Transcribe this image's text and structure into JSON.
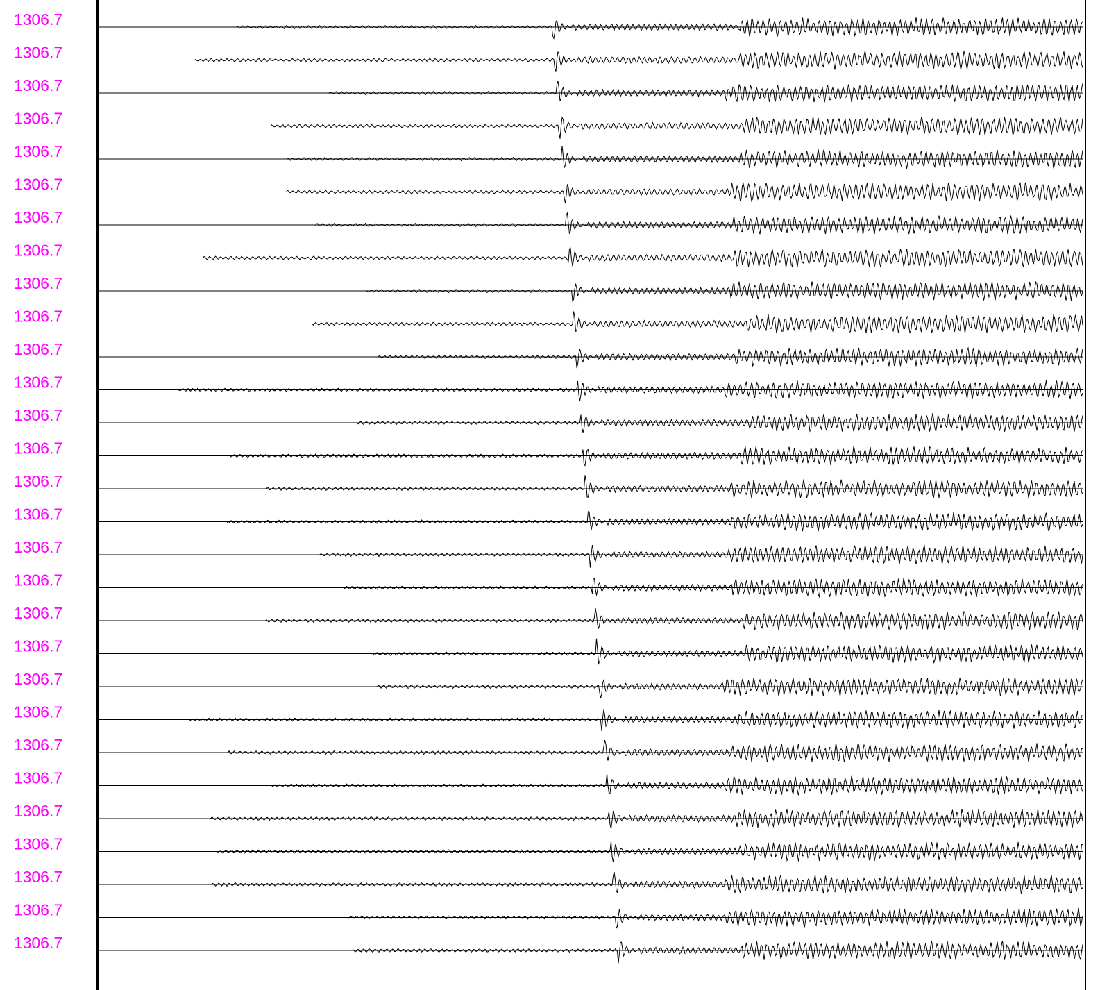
{
  "trace_labels": [
    "1306.7",
    "1306.7",
    "1306.7",
    "1306.7",
    "1306.7",
    "1306.7",
    "1306.7",
    "1306.7",
    "1306.7",
    "1306.7",
    "1306.7",
    "1306.7",
    "1306.7",
    "1306.7",
    "1306.7",
    "1306.7",
    "1306.7",
    "1306.7",
    "1306.7",
    "1306.7",
    "1306.7",
    "1306.7",
    "1306.7",
    "1306.7",
    "1306.7",
    "1306.7",
    "1306.7",
    "1306.7",
    "1306.7"
  ]
}
